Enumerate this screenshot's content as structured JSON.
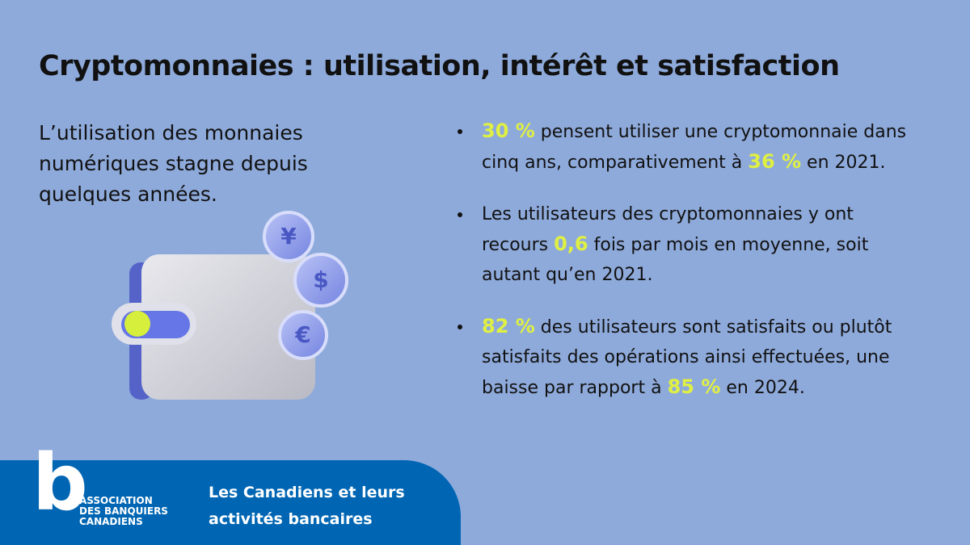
{
  "title": "Cryptomonnaies : utilisation, intérêt et satisfaction",
  "intro": "L’utilisation des monnaies numériques stagne depuis quelques années.",
  "illustration": {
    "coins": [
      "¥",
      "$",
      "€"
    ]
  },
  "bullets": [
    {
      "segments": [
        {
          "text": "30 %",
          "emphasis": true
        },
        {
          "text": " pensent utiliser une cryptomonnaie dans cinq ans, comparativement à ",
          "emphasis": false
        },
        {
          "text": "36 %",
          "emphasis": true
        },
        {
          "text": " en 2021.",
          "emphasis": false
        }
      ]
    },
    {
      "segments": [
        {
          "text": "Les utilisateurs des cryptomonnaies y ont recours ",
          "emphasis": false
        },
        {
          "text": "0,6",
          "emphasis": true
        },
        {
          "text": " fois par mois en moyenne, soit autant qu’en 2021.",
          "emphasis": false
        }
      ]
    },
    {
      "segments": [
        {
          "text": "82 %",
          "emphasis": true
        },
        {
          "text": " des utilisateurs sont satisfaits ou plutôt satisfaits des opérations ainsi effectuées, une baisse par rapport à ",
          "emphasis": false
        },
        {
          "text": "85 %",
          "emphasis": true
        },
        {
          "text": " en 2024.",
          "emphasis": false
        }
      ]
    }
  ],
  "footer": {
    "logo_letter": "b",
    "logo_lines": [
      "ASSOCIATION",
      "DES BANQUIERS",
      "CANADIENS"
    ],
    "tagline": "Les Canadiens et leurs activités bancaires"
  }
}
